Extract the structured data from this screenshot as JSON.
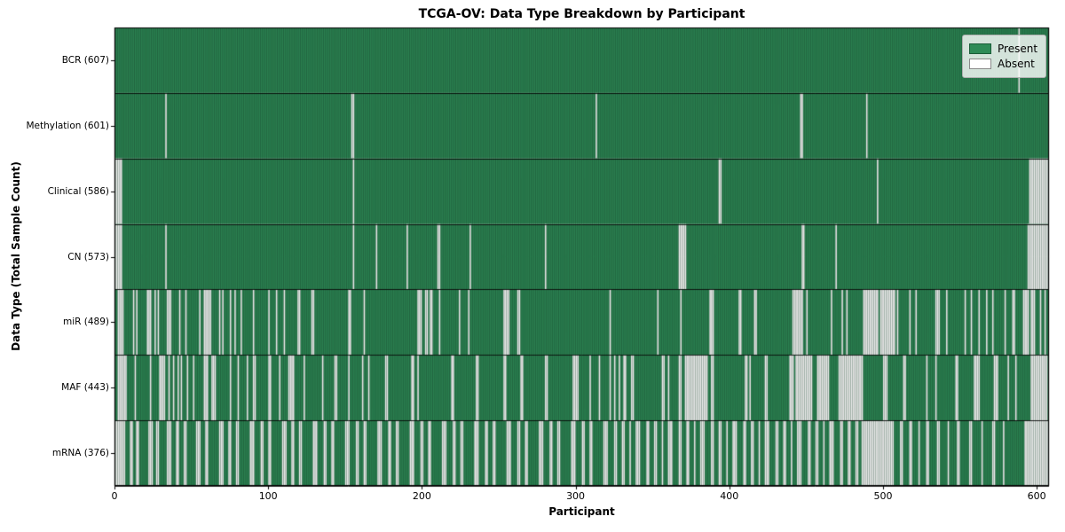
{
  "figure": {
    "title": "TCGA-OV: Data Type Breakdown by Participant",
    "xlabel": "Participant",
    "ylabel": "Data Type (Total Sample Count)"
  },
  "legend": {
    "items": [
      {
        "label": "Present",
        "color": "#2e8b57"
      },
      {
        "label": "Absent",
        "color": "#ffffff"
      }
    ]
  },
  "chart_data": {
    "type": "heatmap",
    "title": "TCGA-OV: Data Type Breakdown by Participant",
    "xlabel": "Participant",
    "ylabel": "Data Type (Total Sample Count)",
    "legend_entries": [
      "Present",
      "Absent"
    ],
    "legend_position": "upper right",
    "grid": false,
    "n_participants": 608,
    "xlim": [
      0,
      608
    ],
    "x_ticks": [
      0,
      100,
      200,
      300,
      400,
      500,
      600
    ],
    "colors": {
      "present": "#2e8b57",
      "absent": "#ffffff",
      "bar_edge": "rgba(0,0,0,0.5)",
      "row_divider": "rgba(0,0,0,0.85)"
    },
    "rows": [
      {
        "label": "BCR (607)",
        "data_type": "BCR",
        "present_count": 607,
        "absent_ranges": [
          [
            588,
            588
          ]
        ]
      },
      {
        "label": "Methylation (601)",
        "data_type": "Methylation",
        "present_count": 601,
        "absent_ranges": [
          [
            33,
            33
          ],
          [
            154,
            155
          ],
          [
            313,
            313
          ],
          [
            446,
            447
          ],
          [
            489,
            489
          ]
        ]
      },
      {
        "label": "Clinical (586)",
        "data_type": "Clinical",
        "present_count": 586,
        "absent_ranges": [
          [
            0,
            4
          ],
          [
            155,
            155
          ],
          [
            393,
            394
          ],
          [
            496,
            496
          ],
          [
            595,
            607
          ]
        ]
      },
      {
        "label": "CN (573)",
        "data_type": "CN",
        "present_count": 573,
        "absent_ranges": [
          [
            0,
            4
          ],
          [
            33,
            33
          ],
          [
            155,
            155
          ],
          [
            170,
            170
          ],
          [
            190,
            190
          ],
          [
            210,
            211
          ],
          [
            231,
            231
          ],
          [
            280,
            280
          ],
          [
            367,
            371
          ],
          [
            447,
            448
          ],
          [
            469,
            469
          ],
          [
            594,
            607
          ]
        ]
      },
      {
        "label": "miR (489)",
        "data_type": "miR",
        "present_count": 489,
        "absent_ranges": [
          [
            2,
            5
          ],
          [
            12,
            12
          ],
          [
            14,
            14
          ],
          [
            21,
            23
          ],
          [
            26,
            26
          ],
          [
            28,
            28
          ],
          [
            34,
            36
          ],
          [
            42,
            42
          ],
          [
            46,
            46
          ],
          [
            55,
            55
          ],
          [
            58,
            62
          ],
          [
            68,
            68
          ],
          [
            70,
            70
          ],
          [
            75,
            75
          ],
          [
            78,
            78
          ],
          [
            82,
            82
          ],
          [
            90,
            90
          ],
          [
            100,
            100
          ],
          [
            105,
            105
          ],
          [
            110,
            110
          ],
          [
            119,
            120
          ],
          [
            128,
            129
          ],
          [
            152,
            153
          ],
          [
            162,
            162
          ],
          [
            197,
            199
          ],
          [
            202,
            203
          ],
          [
            205,
            206
          ],
          [
            211,
            211
          ],
          [
            224,
            224
          ],
          [
            230,
            230
          ],
          [
            253,
            256
          ],
          [
            262,
            263
          ],
          [
            322,
            322
          ],
          [
            353,
            353
          ],
          [
            368,
            368
          ],
          [
            387,
            389
          ],
          [
            406,
            407
          ],
          [
            416,
            417
          ],
          [
            441,
            447
          ],
          [
            450,
            450
          ],
          [
            466,
            466
          ],
          [
            473,
            473
          ],
          [
            476,
            476
          ],
          [
            487,
            496
          ],
          [
            498,
            507
          ],
          [
            509,
            509
          ],
          [
            517,
            517
          ],
          [
            521,
            521
          ],
          [
            534,
            536
          ],
          [
            541,
            541
          ],
          [
            553,
            553
          ],
          [
            557,
            557
          ],
          [
            562,
            562
          ],
          [
            567,
            567
          ],
          [
            571,
            571
          ],
          [
            579,
            579
          ],
          [
            584,
            585
          ],
          [
            591,
            594
          ],
          [
            596,
            598
          ],
          [
            602,
            602
          ],
          [
            605,
            605
          ]
        ]
      },
      {
        "label": "MAF (443)",
        "data_type": "MAF",
        "present_count": 443,
        "absent_ranges": [
          [
            2,
            7
          ],
          [
            13,
            13
          ],
          [
            23,
            23
          ],
          [
            29,
            32
          ],
          [
            35,
            35
          ],
          [
            38,
            38
          ],
          [
            41,
            41
          ],
          [
            43,
            43
          ],
          [
            47,
            47
          ],
          [
            51,
            51
          ],
          [
            58,
            60
          ],
          [
            63,
            65
          ],
          [
            75,
            75
          ],
          [
            80,
            80
          ],
          [
            86,
            86
          ],
          [
            90,
            91
          ],
          [
            100,
            101
          ],
          [
            107,
            107
          ],
          [
            113,
            116
          ],
          [
            123,
            123
          ],
          [
            135,
            135
          ],
          [
            143,
            144
          ],
          [
            152,
            152
          ],
          [
            161,
            161
          ],
          [
            165,
            165
          ],
          [
            176,
            177
          ],
          [
            193,
            194
          ],
          [
            197,
            197
          ],
          [
            219,
            220
          ],
          [
            235,
            236
          ],
          [
            253,
            254
          ],
          [
            264,
            265
          ],
          [
            280,
            281
          ],
          [
            298,
            301
          ],
          [
            309,
            309
          ],
          [
            315,
            315
          ],
          [
            322,
            322
          ],
          [
            325,
            325
          ],
          [
            328,
            328
          ],
          [
            331,
            332
          ],
          [
            336,
            337
          ],
          [
            356,
            357
          ],
          [
            360,
            360
          ],
          [
            367,
            368
          ],
          [
            371,
            385
          ],
          [
            388,
            389
          ],
          [
            410,
            411
          ],
          [
            413,
            413
          ],
          [
            423,
            424
          ],
          [
            439,
            441
          ],
          [
            443,
            453
          ],
          [
            457,
            464
          ],
          [
            471,
            486
          ],
          [
            500,
            502
          ],
          [
            513,
            514
          ],
          [
            528,
            528
          ],
          [
            534,
            534
          ],
          [
            547,
            548
          ],
          [
            559,
            562
          ],
          [
            572,
            574
          ],
          [
            581,
            581
          ],
          [
            586,
            586
          ],
          [
            596,
            606
          ]
        ]
      },
      {
        "label": "mRNA (376)",
        "data_type": "mRNA",
        "present_count": 376,
        "absent_ranges": [
          [
            0,
            6
          ],
          [
            10,
            11
          ],
          [
            14,
            15
          ],
          [
            22,
            24
          ],
          [
            27,
            28
          ],
          [
            34,
            36
          ],
          [
            40,
            41
          ],
          [
            45,
            46
          ],
          [
            53,
            55
          ],
          [
            59,
            60
          ],
          [
            68,
            70
          ],
          [
            74,
            75
          ],
          [
            79,
            80
          ],
          [
            88,
            90
          ],
          [
            95,
            96
          ],
          [
            100,
            101
          ],
          [
            109,
            111
          ],
          [
            115,
            116
          ],
          [
            120,
            121
          ],
          [
            129,
            131
          ],
          [
            136,
            137
          ],
          [
            141,
            142
          ],
          [
            150,
            152
          ],
          [
            157,
            158
          ],
          [
            162,
            163
          ],
          [
            171,
            173
          ],
          [
            178,
            179
          ],
          [
            183,
            184
          ],
          [
            192,
            194
          ],
          [
            199,
            200
          ],
          [
            204,
            205
          ],
          [
            213,
            215
          ],
          [
            220,
            221
          ],
          [
            225,
            226
          ],
          [
            234,
            236
          ],
          [
            241,
            242
          ],
          [
            246,
            247
          ],
          [
            255,
            257
          ],
          [
            262,
            263
          ],
          [
            267,
            268
          ],
          [
            276,
            278
          ],
          [
            283,
            284
          ],
          [
            288,
            289
          ],
          [
            297,
            299
          ],
          [
            304,
            305
          ],
          [
            309,
            310
          ],
          [
            318,
            320
          ],
          [
            325,
            326
          ],
          [
            330,
            331
          ],
          [
            335,
            335
          ],
          [
            339,
            341
          ],
          [
            346,
            347
          ],
          [
            351,
            352
          ],
          [
            356,
            356
          ],
          [
            360,
            362
          ],
          [
            367,
            368
          ],
          [
            372,
            373
          ],
          [
            377,
            377
          ],
          [
            381,
            383
          ],
          [
            388,
            389
          ],
          [
            393,
            394
          ],
          [
            398,
            398
          ],
          [
            402,
            404
          ],
          [
            409,
            410
          ],
          [
            414,
            415
          ],
          [
            419,
            419
          ],
          [
            423,
            425
          ],
          [
            430,
            431
          ],
          [
            435,
            436
          ],
          [
            440,
            440
          ],
          [
            444,
            446
          ],
          [
            451,
            452
          ],
          [
            456,
            457
          ],
          [
            461,
            461
          ],
          [
            465,
            467
          ],
          [
            472,
            473
          ],
          [
            477,
            478
          ],
          [
            482,
            483
          ],
          [
            486,
            506
          ],
          [
            511,
            512
          ],
          [
            517,
            518
          ],
          [
            523,
            523
          ],
          [
            528,
            529
          ],
          [
            535,
            536
          ],
          [
            542,
            542
          ],
          [
            548,
            549
          ],
          [
            556,
            557
          ],
          [
            564,
            564
          ],
          [
            571,
            572
          ],
          [
            578,
            578
          ],
          [
            592,
            607
          ]
        ]
      }
    ]
  }
}
